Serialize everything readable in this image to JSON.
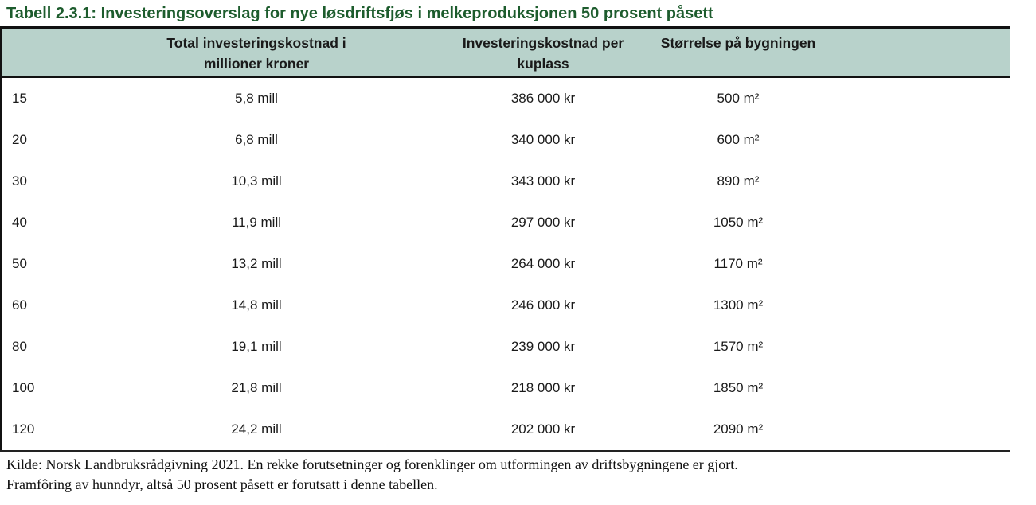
{
  "palette": {
    "title_green": "#1d5c2d",
    "header_bg": "#b8d2cb",
    "border_black": "#111111",
    "body_text": "#1a1a1a"
  },
  "title": "Tabell 2.3.1: Investeringsoverslag for nye løsdriftsfjøs i melkeproduksjonen 50 prosent påsett",
  "table": {
    "columns": [
      {
        "id": "kuplasser",
        "label_line1": "",
        "label_line2": ""
      },
      {
        "id": "total",
        "label_line1": "Total investeringskostnad i",
        "label_line2": "millioner kroner"
      },
      {
        "id": "per_kuplass",
        "label_line1": "Investeringskostnad per",
        "label_line2": "kuplass"
      },
      {
        "id": "storrelse",
        "label_line1": "Størrelse på bygningen",
        "label_line2": ""
      }
    ],
    "rows": [
      {
        "kuplasser": "15",
        "total": "5,8 mill",
        "per_kuplass": "386 000 kr",
        "storrelse": "500 m²"
      },
      {
        "kuplasser": "20",
        "total": "6,8 mill",
        "per_kuplass": "340 000 kr",
        "storrelse": "600 m²"
      },
      {
        "kuplasser": "30",
        "total": "10,3 mill",
        "per_kuplass": "343 000 kr",
        "storrelse": "890 m²"
      },
      {
        "kuplasser": "40",
        "total": "11,9 mill",
        "per_kuplass": "297 000 kr",
        "storrelse": "1050 m²"
      },
      {
        "kuplasser": "50",
        "total": "13,2 mill",
        "per_kuplass": "264 000 kr",
        "storrelse": "1170 m²"
      },
      {
        "kuplasser": "60",
        "total": "14,8 mill",
        "per_kuplass": "246 000 kr",
        "storrelse": "1300 m²"
      },
      {
        "kuplasser": "80",
        "total": "19,1 mill",
        "per_kuplass": "239 000 kr",
        "storrelse": "1570 m²"
      },
      {
        "kuplasser": "100",
        "total": "21,8 mill",
        "per_kuplass": "218 000 kr",
        "storrelse": "1850 m²"
      },
      {
        "kuplasser": "120",
        "total": "24,2 mill",
        "per_kuplass": "202 000 kr",
        "storrelse": "2090 m²"
      }
    ]
  },
  "source_note": {
    "line1": "Kilde: Norsk Landbruksrådgivning 2021. En rekke forutsetninger og forenklinger om utformingen av driftsbygningene er gjort.",
    "line2": "Framfôring av hunndyr, altså 50 prosent påsett er forutsatt i denne tabellen."
  }
}
